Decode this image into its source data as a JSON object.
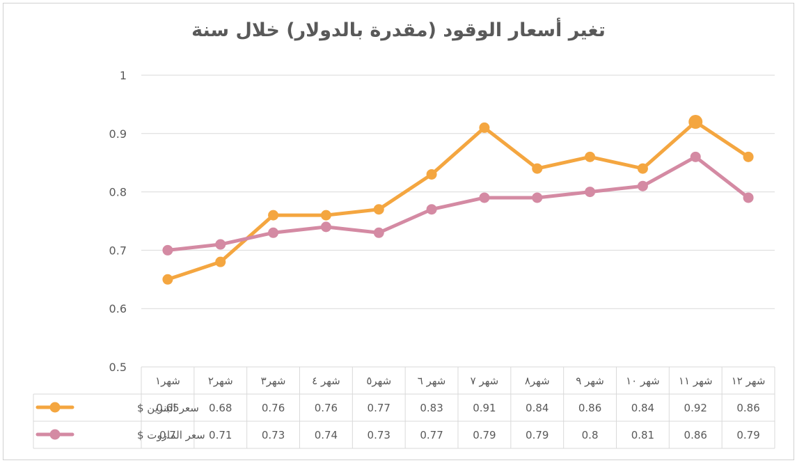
{
  "chart_data": {
    "type": "line",
    "title": "تغير أسعار الوقود (مقدرة بالدولار) خلال سنة",
    "categories": [
      "شهر١",
      "شهر٢",
      "شهر٣",
      "شهر ٤",
      "شهر٥",
      "شهر ٦",
      "شهر ٧",
      "شهر٨",
      "شهر ٩",
      "شهر ١٠",
      "شهر ١١",
      "شهر ١٢"
    ],
    "series": [
      {
        "name": "سعر البنزين $",
        "color": "#F4A640",
        "values": [
          0.65,
          0.68,
          0.76,
          0.76,
          0.77,
          0.83,
          0.91,
          0.84,
          0.86,
          0.84,
          0.92,
          0.86
        ]
      },
      {
        "name": "سعر المازوت $",
        "color": "#D48AA3",
        "values": [
          0.7,
          0.71,
          0.73,
          0.74,
          0.73,
          0.77,
          0.79,
          0.79,
          0.8,
          0.81,
          0.86,
          0.79
        ]
      }
    ],
    "ylim": [
      0.5,
      1
    ],
    "yticks": [
      "0.5",
      "0.6",
      "0.7",
      "0.8",
      "0.9",
      "1"
    ],
    "grid": true,
    "data_table": true,
    "legend": "data-table"
  }
}
